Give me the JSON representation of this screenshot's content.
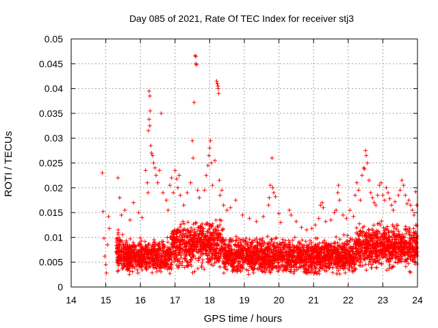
{
  "chart_data": {
    "type": "scatter",
    "title": "Day 085 of 2021, Rate Of TEC Index for receiver stj3",
    "xlabel": "GPS time / hours",
    "ylabel": "ROTI / TECUs",
    "xlim": [
      14,
      24
    ],
    "ylim": [
      0,
      0.05
    ],
    "xticks": [
      14,
      15,
      16,
      17,
      18,
      19,
      20,
      21,
      22,
      23,
      24
    ],
    "xtick_labels": [
      "14",
      "15",
      "16",
      "17",
      "18",
      "19",
      "20",
      "21",
      "22",
      "23",
      "24"
    ],
    "yticks": [
      0,
      0.005,
      0.01,
      0.015,
      0.02,
      0.025,
      0.03,
      0.035,
      0.04,
      0.045,
      0.05
    ],
    "ytick_labels": [
      "0",
      "0.005",
      "0.01",
      "0.015",
      "0.02",
      "0.025",
      "0.03",
      "0.035",
      "0.04",
      "0.045",
      "0.05"
    ],
    "grid": true,
    "marker": "plus",
    "color": "#ff0000",
    "series": [
      {
        "name": "ROTI",
        "points": [
          [
            14.9,
            0.023
          ],
          [
            14.92,
            0.0152
          ],
          [
            14.95,
            0.0098
          ],
          [
            14.97,
            0.0062
          ],
          [
            15.0,
            0.0045
          ],
          [
            15.02,
            0.0028
          ],
          [
            15.05,
            0.0085
          ],
          [
            15.08,
            0.0142
          ],
          [
            15.1,
            0.0118
          ],
          [
            15.35,
            0.022
          ],
          [
            15.4,
            0.018
          ],
          [
            15.45,
            0.0145
          ],
          [
            15.55,
            0.0155
          ],
          [
            15.7,
            0.0135
          ],
          [
            15.8,
            0.017
          ],
          [
            15.95,
            0.015
          ],
          [
            16.05,
            0.014
          ],
          [
            16.15,
            0.0235
          ],
          [
            16.2,
            0.021
          ],
          [
            16.22,
            0.019
          ],
          [
            16.25,
            0.0395
          ],
          [
            16.27,
            0.0385
          ],
          [
            16.28,
            0.0355
          ],
          [
            16.25,
            0.0338
          ],
          [
            16.27,
            0.0325
          ],
          [
            16.23,
            0.0315
          ],
          [
            16.3,
            0.0285
          ],
          [
            16.32,
            0.027
          ],
          [
            16.35,
            0.0265
          ],
          [
            16.38,
            0.025
          ],
          [
            16.42,
            0.024
          ],
          [
            16.45,
            0.0225
          ],
          [
            16.5,
            0.021
          ],
          [
            16.55,
            0.0235
          ],
          [
            16.6,
            0.035
          ],
          [
            16.65,
            0.019
          ],
          [
            16.75,
            0.0175
          ],
          [
            16.8,
            0.0155
          ],
          [
            16.85,
            0.0205
          ],
          [
            16.9,
            0.022
          ],
          [
            16.95,
            0.019
          ],
          [
            17.0,
            0.0235
          ],
          [
            17.05,
            0.0218
          ],
          [
            17.08,
            0.02
          ],
          [
            17.12,
            0.0225
          ],
          [
            17.15,
            0.0185
          ],
          [
            17.25,
            0.0165
          ],
          [
            17.35,
            0.019
          ],
          [
            17.45,
            0.021
          ],
          [
            17.5,
            0.0295
          ],
          [
            17.52,
            0.026
          ],
          [
            17.55,
            0.0372
          ],
          [
            17.58,
            0.0466
          ],
          [
            17.6,
            0.0465
          ],
          [
            17.6,
            0.045
          ],
          [
            17.62,
            0.0448
          ],
          [
            17.65,
            0.0195
          ],
          [
            17.7,
            0.018
          ],
          [
            17.85,
            0.0195
          ],
          [
            17.9,
            0.0225
          ],
          [
            17.95,
            0.0245
          ],
          [
            17.98,
            0.0265
          ],
          [
            18.0,
            0.028
          ],
          [
            18.02,
            0.0295
          ],
          [
            18.05,
            0.025
          ],
          [
            18.08,
            0.0205
          ],
          [
            18.15,
            0.0255
          ],
          [
            18.2,
            0.0415
          ],
          [
            18.22,
            0.041
          ],
          [
            18.24,
            0.0405
          ],
          [
            18.25,
            0.04
          ],
          [
            18.26,
            0.039
          ],
          [
            18.28,
            0.0215
          ],
          [
            18.3,
            0.0185
          ],
          [
            18.35,
            0.0195
          ],
          [
            18.4,
            0.0165
          ],
          [
            18.5,
            0.0155
          ],
          [
            18.6,
            0.016
          ],
          [
            18.75,
            0.0175
          ],
          [
            18.95,
            0.0145
          ],
          [
            19.15,
            0.0138
          ],
          [
            19.35,
            0.0132
          ],
          [
            19.55,
            0.0142
          ],
          [
            19.7,
            0.0165
          ],
          [
            19.72,
            0.018
          ],
          [
            19.75,
            0.0205
          ],
          [
            19.8,
            0.026
          ],
          [
            19.82,
            0.02
          ],
          [
            19.85,
            0.019
          ],
          [
            19.9,
            0.0182
          ],
          [
            20.0,
            0.0148
          ],
          [
            20.05,
            0.013
          ],
          [
            20.1,
            0.009
          ],
          [
            20.3,
            0.0155
          ],
          [
            20.35,
            0.0145
          ],
          [
            20.5,
            0.0132
          ],
          [
            20.65,
            0.012
          ],
          [
            20.8,
            0.0115
          ],
          [
            20.95,
            0.0118
          ],
          [
            21.05,
            0.0125
          ],
          [
            21.15,
            0.0138
          ],
          [
            21.2,
            0.0165
          ],
          [
            21.25,
            0.017
          ],
          [
            21.28,
            0.016
          ],
          [
            21.35,
            0.0132
          ],
          [
            21.5,
            0.0135
          ],
          [
            21.6,
            0.015
          ],
          [
            21.65,
            0.0155
          ],
          [
            21.7,
            0.019
          ],
          [
            21.72,
            0.0205
          ],
          [
            21.75,
            0.0175
          ],
          [
            21.85,
            0.0145
          ],
          [
            21.95,
            0.0138
          ],
          [
            22.05,
            0.0155
          ],
          [
            22.15,
            0.0142
          ],
          [
            22.2,
            0.0185
          ],
          [
            22.25,
            0.021
          ],
          [
            22.3,
            0.0195
          ],
          [
            22.35,
            0.0175
          ],
          [
            22.4,
            0.0225
          ],
          [
            22.45,
            0.024
          ],
          [
            22.47,
            0.0238
          ],
          [
            22.5,
            0.0275
          ],
          [
            22.52,
            0.0265
          ],
          [
            22.55,
            0.025
          ],
          [
            22.6,
            0.0215
          ],
          [
            22.65,
            0.019
          ],
          [
            22.7,
            0.018
          ],
          [
            22.75,
            0.017
          ],
          [
            22.8,
            0.0165
          ],
          [
            22.85,
            0.0185
          ],
          [
            22.9,
            0.0205
          ],
          [
            22.95,
            0.021
          ],
          [
            23.0,
            0.0185
          ],
          [
            23.05,
            0.0175
          ],
          [
            23.1,
            0.02
          ],
          [
            23.15,
            0.019
          ],
          [
            23.2,
            0.0178
          ],
          [
            23.25,
            0.0165
          ],
          [
            23.3,
            0.0155
          ],
          [
            23.35,
            0.0172
          ],
          [
            23.45,
            0.0185
          ],
          [
            23.5,
            0.0195
          ],
          [
            23.55,
            0.0215
          ],
          [
            23.6,
            0.0205
          ],
          [
            23.65,
            0.0185
          ],
          [
            23.7,
            0.0168
          ],
          [
            23.75,
            0.0175
          ],
          [
            23.8,
            0.0165
          ],
          [
            23.85,
            0.0155
          ],
          [
            23.9,
            0.0145
          ],
          [
            23.95,
            0.0192
          ],
          [
            23.98,
            0.0165
          ]
        ]
      }
    ]
  }
}
